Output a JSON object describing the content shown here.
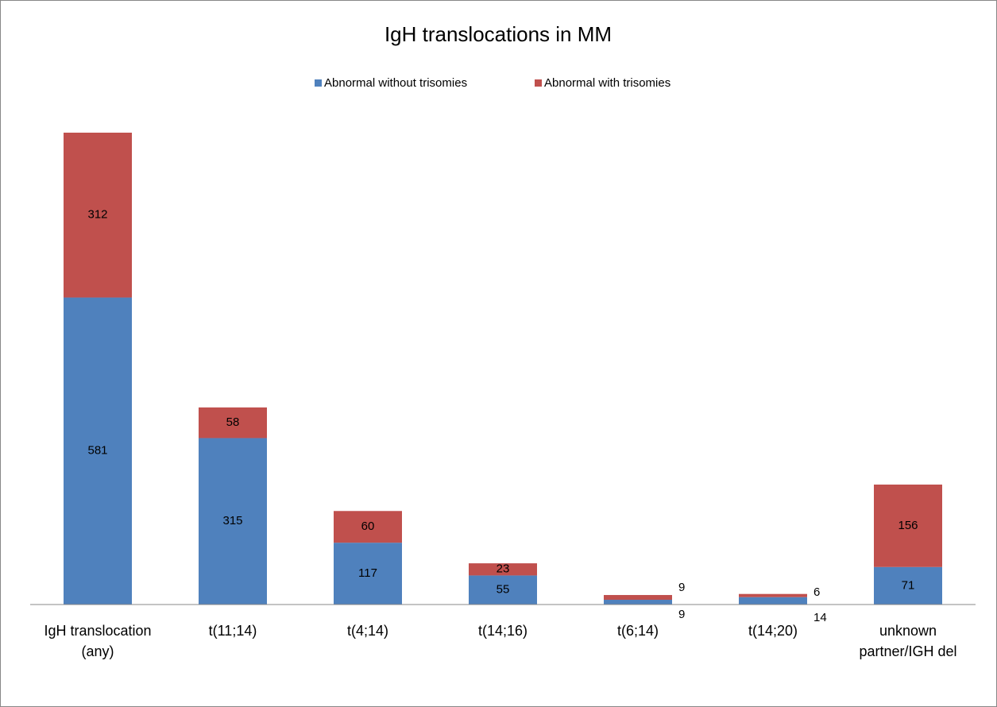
{
  "chart_data": {
    "type": "stacked_bar",
    "title": "IgH translocations in MM",
    "categories": [
      "IgH translocation (any)",
      "t(11;14)",
      "t(4;14)",
      "t(14;16)",
      "t(6;14)",
      "t(14;20)",
      "unknown partner/IGH del"
    ],
    "series": [
      {
        "name": "Abnormal without trisomies",
        "color": "#4f81bd",
        "values": [
          581,
          315,
          117,
          55,
          9,
          14,
          71
        ]
      },
      {
        "name": "Abnormal with trisomies",
        "color": "#c0504d",
        "values": [
          312,
          58,
          60,
          23,
          9,
          6,
          156
        ]
      }
    ],
    "legend": "top"
  }
}
